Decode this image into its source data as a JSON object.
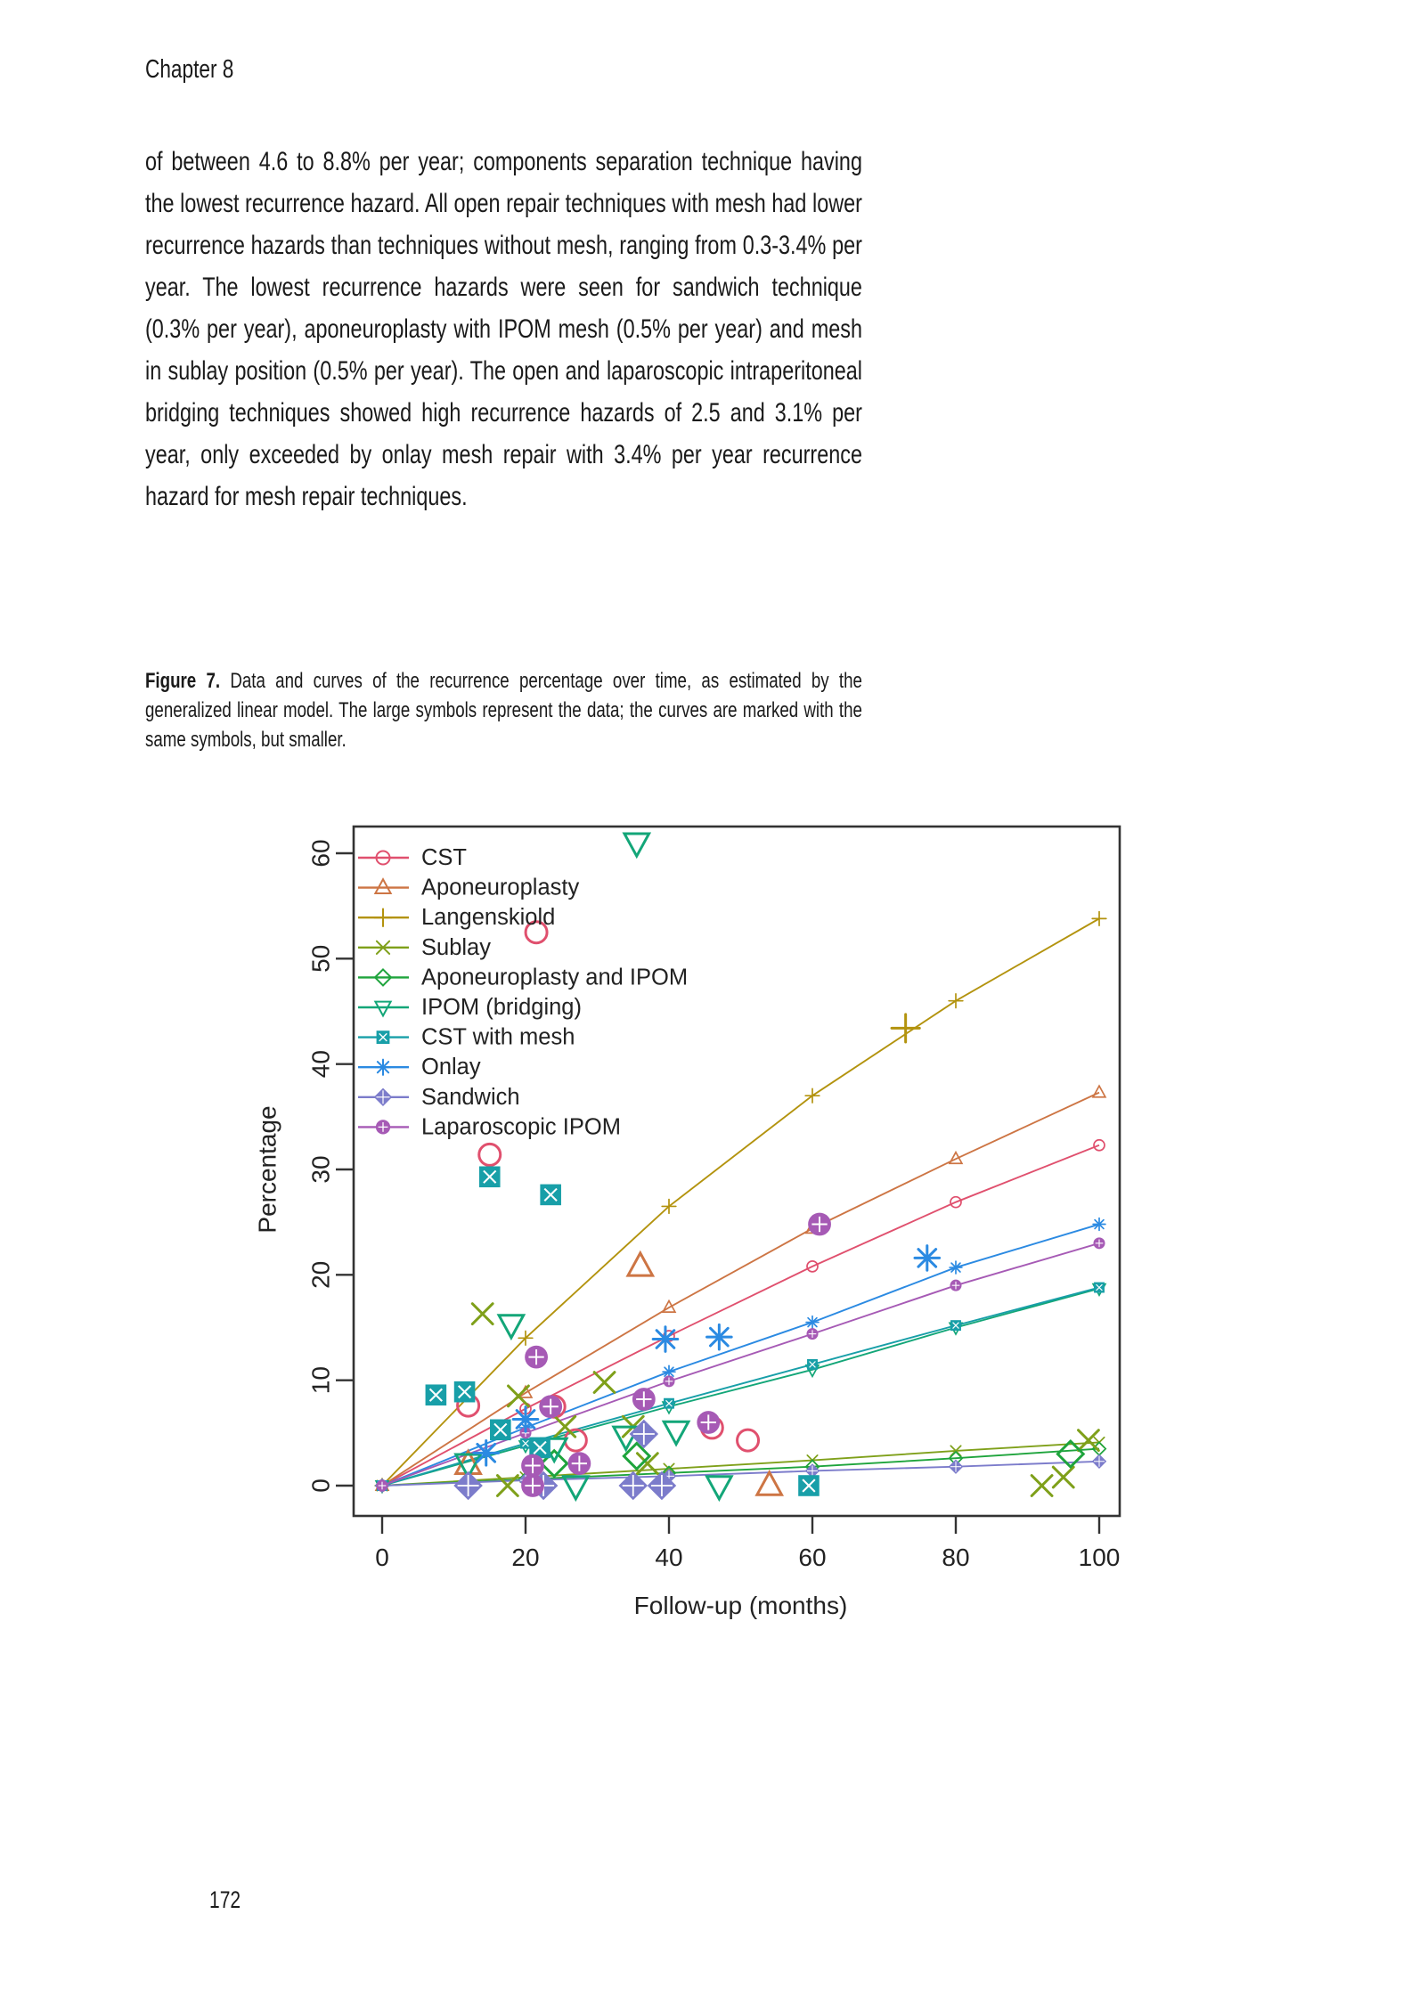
{
  "page": {
    "header": "Chapter 8",
    "paragraph": "of between 4.6 to 8.8% per year; components separation technique having the lowest recurrence hazard. All open repair techniques with mesh had lower recurrence hazards than techniques without mesh, ranging from 0.3-3.4% per year. The lowest recurrence hazards were seen for sandwich technique (0.3% per year), aponeuroplasty with IPOM mesh (0.5% per year) and mesh in sublay position (0.5% per year). The open and laparoscopic intraperitoneal bridging techniques showed high recurrence hazards of 2.5 and 3.1% per year, only exceeded by onlay mesh repair with 3.4% per year recurrence hazard for mesh repair techniques.",
    "caption_label": "Figure 7.",
    "caption_text": "Data and curves of the recurrence percentage over time, as estimated by the generalized linear model. The large symbols represent the data; the curves are marked with the same symbols, but smaller.",
    "page_number": "172"
  },
  "chart_data": {
    "type": "scatter",
    "title": "",
    "xlabel": "Follow-up (months)",
    "ylabel": "Percentage",
    "xlim": [
      0,
      100
    ],
    "ylim": [
      0,
      60
    ],
    "xticks": [
      0,
      20,
      40,
      60,
      80,
      100
    ],
    "yticks": [
      0,
      10,
      20,
      30,
      40,
      50,
      60
    ],
    "grid": false,
    "legend_position": "top-left-inside",
    "axis_color": "#333333",
    "curve_x": [
      0,
      20,
      40,
      60,
      80,
      100
    ],
    "series": [
      {
        "name": "CST",
        "color": "#e0506e",
        "symbol": "circle",
        "curve_y": [
          0,
          7.3,
          14.2,
          20.8,
          26.9,
          32.3
        ],
        "points": [
          [
            21.5,
            52.5
          ],
          [
            15,
            31.4
          ],
          [
            12,
            7.6
          ],
          [
            24,
            7.5
          ],
          [
            27,
            4.3
          ],
          [
            46,
            5.5
          ],
          [
            51,
            4.3
          ]
        ]
      },
      {
        "name": "Aponeuroplasty",
        "color": "#cd7544",
        "symbol": "triangle-up",
        "curve_y": [
          0,
          8.8,
          16.9,
          24.4,
          31.0,
          37.3
        ],
        "points": [
          [
            36,
            20.8
          ],
          [
            12,
            2.0
          ],
          [
            54,
            0
          ]
        ]
      },
      {
        "name": "Langenskiold",
        "color": "#b3930e",
        "symbol": "plus",
        "curve_y": [
          0,
          14.0,
          26.5,
          37.0,
          46.0,
          53.8
        ],
        "points": [
          [
            73,
            43.4
          ]
        ]
      },
      {
        "name": "Sublay",
        "color": "#7fa01a",
        "symbol": "x",
        "curve_y": [
          0,
          0.8,
          1.6,
          2.4,
          3.3,
          4.1
        ],
        "points": [
          [
            14,
            16.3
          ],
          [
            19,
            8.5
          ],
          [
            31,
            9.8
          ],
          [
            25.5,
            5.6
          ],
          [
            35,
            5.6
          ],
          [
            37,
            2.1
          ],
          [
            17.5,
            0
          ],
          [
            92,
            0
          ],
          [
            95,
            0.8
          ],
          [
            98.5,
            4.3
          ]
        ]
      },
      {
        "name": "Aponeuroplasty and IPOM",
        "color": "#1ea43c",
        "symbol": "diamond",
        "curve_y": [
          0,
          0.6,
          1.2,
          1.8,
          2.6,
          3.5
        ],
        "points": [
          [
            35.5,
            2.8
          ],
          [
            24,
            2.1
          ],
          [
            96,
            3.0
          ]
        ]
      },
      {
        "name": "IPOM (bridging)",
        "color": "#13a678",
        "symbol": "triangle-down",
        "curve_y": [
          0,
          3.8,
          7.5,
          11.0,
          15.0,
          18.7
        ],
        "points": [
          [
            35.5,
            61.0
          ],
          [
            18,
            15.3
          ],
          [
            12,
            2.1
          ],
          [
            24,
            3.6
          ],
          [
            34,
            4.7
          ],
          [
            41,
            5.2
          ],
          [
            27,
            0
          ],
          [
            47,
            0
          ]
        ]
      },
      {
        "name": "CST with mesh",
        "color": "#189fa8",
        "symbol": "square-x",
        "curve_y": [
          0,
          4.0,
          7.8,
          11.5,
          15.2,
          18.8
        ],
        "points": [
          [
            15,
            29.3
          ],
          [
            23.5,
            27.6
          ],
          [
            7.5,
            8.6
          ],
          [
            11.5,
            8.9
          ],
          [
            16.5,
            5.3
          ],
          [
            22,
            3.6
          ],
          [
            59.5,
            0
          ]
        ]
      },
      {
        "name": "Onlay",
        "color": "#2b8ae2",
        "symbol": "asterisk",
        "curve_y": [
          0,
          5.5,
          10.8,
          15.5,
          20.7,
          24.8
        ],
        "points": [
          [
            20,
            6.3
          ],
          [
            14.5,
            3.1
          ],
          [
            39.5,
            13.9
          ],
          [
            47,
            14.1
          ],
          [
            76,
            21.6
          ]
        ]
      },
      {
        "name": "Sandwich",
        "color": "#7c7ccb",
        "symbol": "diamond-plus",
        "curve_y": [
          0,
          0.5,
          0.9,
          1.4,
          1.8,
          2.3
        ],
        "points": [
          [
            12,
            0
          ],
          [
            22.5,
            0
          ],
          [
            35,
            0
          ],
          [
            39,
            0
          ],
          [
            36.5,
            4.9
          ]
        ]
      },
      {
        "name": "Laparoscopic IPOM",
        "color": "#a65ab5",
        "symbol": "circle-plus",
        "curve_y": [
          0,
          5.0,
          9.9,
          14.4,
          19.0,
          23.0
        ],
        "points": [
          [
            21.5,
            12.2
          ],
          [
            23.5,
            7.5
          ],
          [
            21,
            1.9
          ],
          [
            27.5,
            2.1
          ],
          [
            21,
            0
          ],
          [
            36.5,
            8.2
          ],
          [
            45.5,
            6.0
          ],
          [
            61,
            24.8
          ]
        ]
      }
    ]
  }
}
